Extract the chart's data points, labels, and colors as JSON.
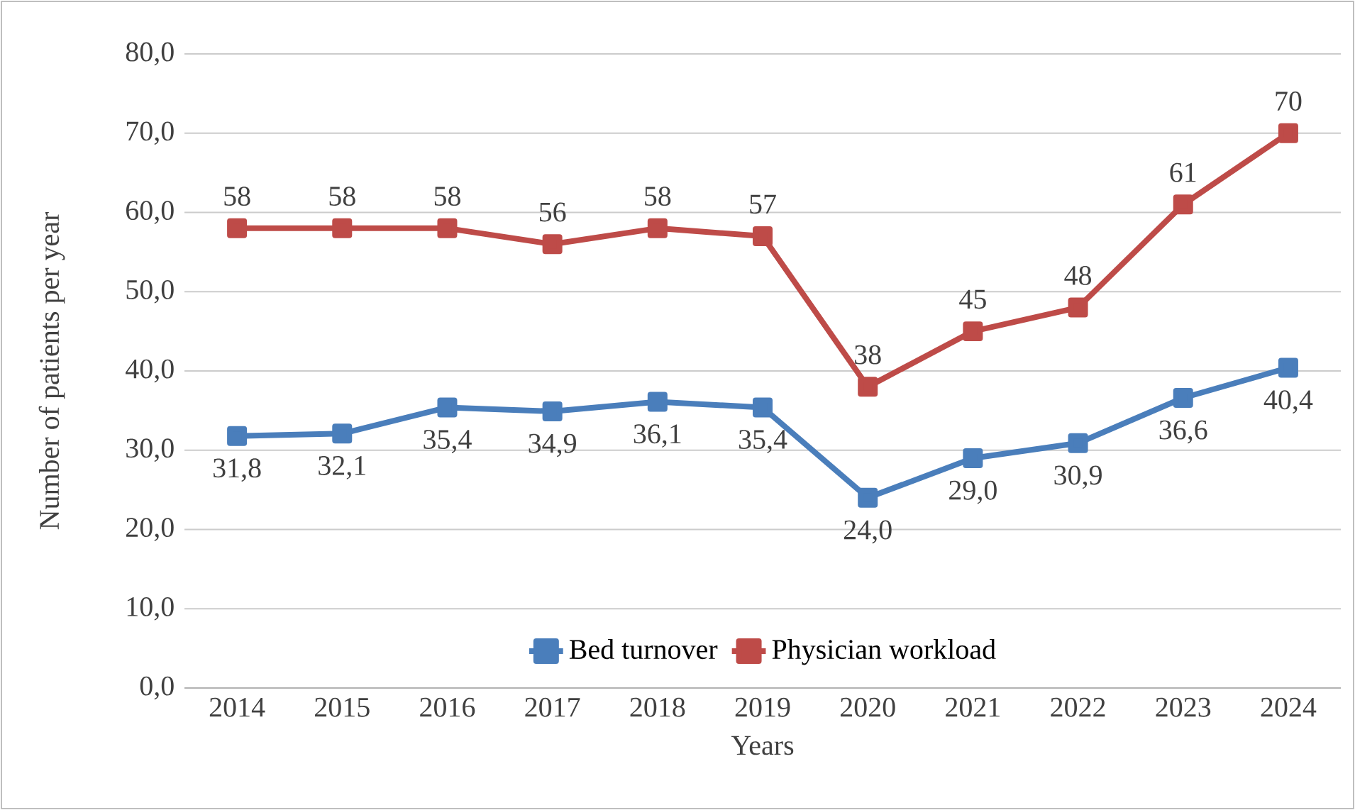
{
  "chart_data": {
    "type": "line",
    "xlabel": "Years",
    "ylabel": "Number of patients per year",
    "categories": [
      "2014",
      "2015",
      "2016",
      "2017",
      "2018",
      "2019",
      "2020",
      "2021",
      "2022",
      "2023",
      "2024"
    ],
    "series": [
      {
        "name": "Bed turnover",
        "color": "#4a7ebb",
        "values": [
          31.8,
          32.1,
          35.4,
          34.9,
          36.1,
          35.4,
          24.0,
          29.0,
          30.9,
          36.6,
          40.4
        ],
        "value_labels": [
          "31,8",
          "32,1",
          "35,4",
          "34,9",
          "36,1",
          "35,4",
          "24,0",
          "29,0",
          "30,9",
          "36,6",
          "40,4"
        ]
      },
      {
        "name": "Physician workload",
        "color": "#be4b48",
        "values": [
          58,
          58,
          58,
          56,
          58,
          57,
          38,
          45,
          48,
          61,
          70
        ],
        "value_labels": [
          "58",
          "58",
          "58",
          "56",
          "58",
          "57",
          "38",
          "45",
          "48",
          "61",
          "70"
        ]
      }
    ],
    "ylim": [
      0,
      80
    ],
    "yticks": [
      {
        "value": 0,
        "label": "0,0"
      },
      {
        "value": 10,
        "label": "10,0"
      },
      {
        "value": 20,
        "label": "20,0"
      },
      {
        "value": 30,
        "label": "30,0"
      },
      {
        "value": 40,
        "label": "40,0"
      },
      {
        "value": 50,
        "label": "50,0"
      },
      {
        "value": 60,
        "label": "60,0"
      },
      {
        "value": 70,
        "label": "70,0"
      },
      {
        "value": 80,
        "label": "80,0"
      }
    ],
    "grid": "y",
    "legend": "bottom",
    "marker": "square",
    "line_style": "solid"
  }
}
